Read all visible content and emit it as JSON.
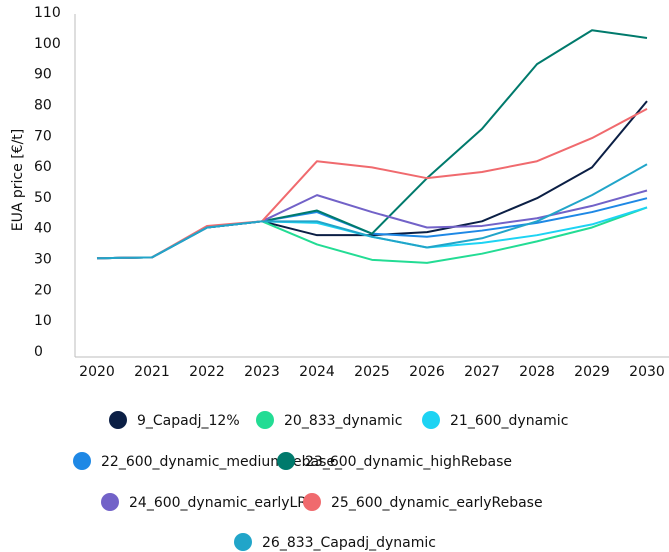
{
  "chart_data": {
    "type": "line",
    "y_label": "EUA price [€/t]",
    "x": [
      2020,
      2021,
      2022,
      2023,
      2024,
      2025,
      2026,
      2027,
      2028,
      2029,
      2030
    ],
    "xlim": [
      2020,
      2030
    ],
    "xticks": [
      2020,
      2021,
      2022,
      2023,
      2024,
      2025,
      2026,
      2027,
      2028,
      2029,
      2030
    ],
    "ylim": [
      0,
      110
    ],
    "yticks": [
      0,
      10,
      20,
      30,
      40,
      50,
      60,
      70,
      80,
      90,
      100,
      110
    ],
    "grid": false,
    "series": [
      {
        "name": "9_Capadj_12%",
        "color": "#0b1f45",
        "values": [
          33,
          33.3,
          43,
          45,
          40.5,
          40.5,
          41.5,
          45,
          52.5,
          62.5,
          84
        ]
      },
      {
        "name": "20_833_dynamic",
        "color": "#23dc94",
        "values": [
          33,
          33.3,
          43,
          45,
          37.5,
          32.5,
          31.5,
          34.5,
          38.5,
          43,
          49.5
        ]
      },
      {
        "name": "21_600_dynamic",
        "color": "#1dd3f3",
        "values": [
          33,
          33.3,
          43,
          45,
          44.5,
          40,
          36.5,
          38,
          40.5,
          44,
          49.5
        ]
      },
      {
        "name": "22_600_dynamic_mediumRebase_",
        "color": "#1e88e5",
        "values": [
          33,
          33.3,
          43,
          45,
          48,
          41,
          40,
          42,
          44.5,
          48,
          52.5
        ]
      },
      {
        "name": "23_600_dynamic_highRebase",
        "color": "#007a6c",
        "values": [
          33,
          33.3,
          43,
          45,
          48.5,
          41,
          59,
          75,
          96,
          107,
          104.5
        ]
      },
      {
        "name": "24_600_dynamic_earlyLRF",
        "color": "#7262c8",
        "values": [
          33,
          33.3,
          43,
          45,
          53.5,
          48,
          43,
          43.5,
          46,
          50,
          55
        ]
      },
      {
        "name": "25_600_dynamic_earlyRebase",
        "color": "#f06a6e",
        "values": [
          33,
          33.3,
          43.5,
          45,
          64.5,
          62.5,
          59,
          61,
          64.5,
          72,
          81.5
        ]
      },
      {
        "name": "26_833_Capadj_dynamic",
        "color": "#21a5c9",
        "values": [
          33,
          33.3,
          43,
          45,
          45,
          40,
          36.5,
          39.5,
          45,
          53.5,
          63.5
        ]
      }
    ]
  }
}
